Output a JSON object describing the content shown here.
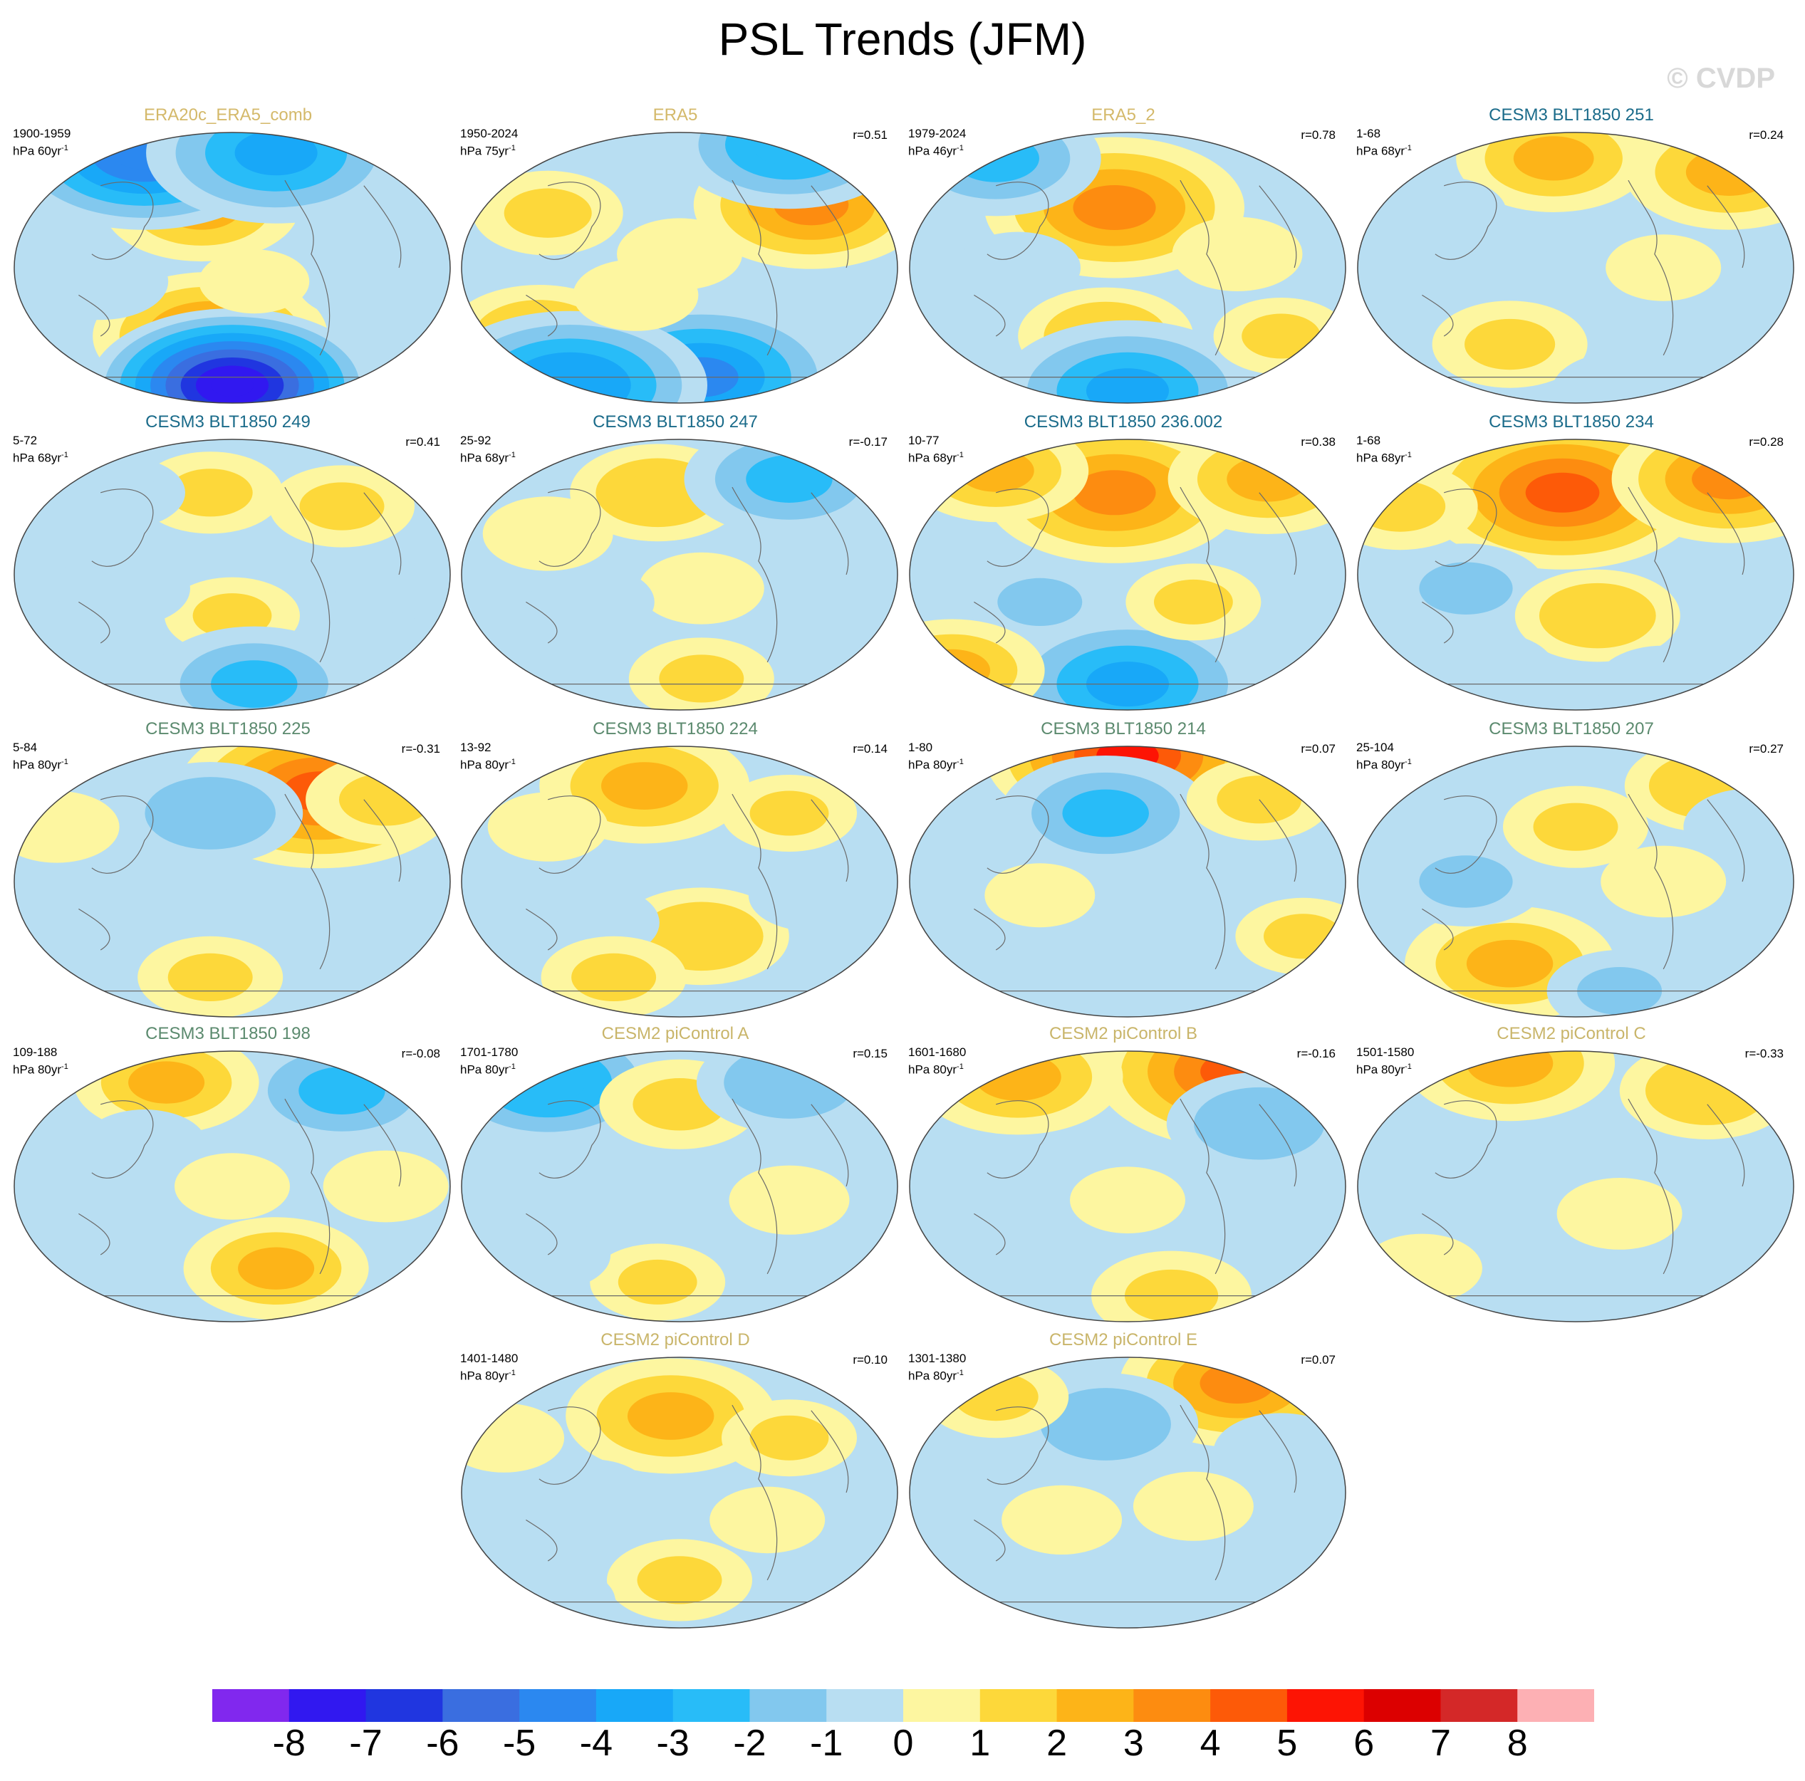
{
  "header": {
    "title": "PSL Trends (JFM)",
    "watermark": "© CVDP"
  },
  "colors": {
    "model_title": "#1a6b8a",
    "obs_title": "#d4b96a",
    "control_title": "#c9b56a",
    "muted_title": "#5b8a6e"
  },
  "chart_data": {
    "type": "heatmap",
    "title": "PSL Trends (JFM)",
    "projection": "Robinson (global)",
    "variable": "PSL",
    "season": "JFM",
    "colorbar": {
      "ticks": [
        "-8",
        "-7",
        "-6",
        "-5",
        "-4",
        "-3",
        "-2",
        "-1",
        "0",
        "1",
        "2",
        "3",
        "4",
        "5",
        "6",
        "7",
        "8"
      ],
      "colors": [
        "#8128ee",
        "#3118f0",
        "#2036e0",
        "#3a6ee0",
        "#2b88f0",
        "#18a8f8",
        "#28bcf8",
        "#82c8ee",
        "#b8def2",
        "#fdf6a0",
        "#fdd83a",
        "#fdb418",
        "#fd8c10",
        "#fd5a08",
        "#fd1404",
        "#dc0000",
        "#d42828",
        "#fdb0b4"
      ],
      "range": [
        -8,
        8
      ]
    },
    "panels": [
      {
        "name": "ERA20c_ERA5_comb",
        "period": "1900-1959",
        "units_base": "hPa 60yr",
        "units_exp": "-1",
        "r": "",
        "title_color": "obs",
        "features": [
          [
            0.43,
            0.28,
            2.2
          ],
          [
            0.72,
            0.08,
            1.4
          ],
          [
            0.45,
            0.75,
            3.0
          ],
          [
            0.5,
            0.93,
            -8.0
          ],
          [
            0.3,
            0.08,
            -5.0
          ],
          [
            0.6,
            0.08,
            -3.5
          ],
          [
            0.2,
            0.55,
            -1.0
          ],
          [
            0.8,
            0.55,
            -1.0
          ],
          [
            0.55,
            0.55,
            0.5
          ]
        ]
      },
      {
        "name": "ERA5",
        "period": "1950-2024",
        "units_base": "hPa 75yr",
        "units_exp": "-1",
        "r": "r=0.51",
        "title_color": "obs",
        "features": [
          [
            0.8,
            0.27,
            3.0
          ],
          [
            0.2,
            0.3,
            1.3
          ],
          [
            0.18,
            0.75,
            2.0
          ],
          [
            0.55,
            0.9,
            -4.5
          ],
          [
            0.25,
            0.93,
            -3.8
          ],
          [
            0.75,
            0.05,
            -3.0
          ],
          [
            0.5,
            0.45,
            0.8
          ],
          [
            0.4,
            0.6,
            0.8
          ]
        ]
      },
      {
        "name": "ERA5_2",
        "period": "1979-2024",
        "units_base": "hPa 46yr",
        "units_exp": "-1",
        "r": "r=0.78",
        "title_color": "obs",
        "features": [
          [
            0.47,
            0.28,
            3.5
          ],
          [
            0.45,
            0.75,
            1.8
          ],
          [
            0.5,
            0.95,
            -3.5
          ],
          [
            0.2,
            0.1,
            -2.5
          ],
          [
            0.25,
            0.5,
            -0.8
          ],
          [
            0.75,
            0.45,
            0.9
          ],
          [
            0.85,
            0.75,
            1.0
          ]
        ]
      },
      {
        "name": "CESM3 BLT1850 251",
        "period": "1-68",
        "units_base": "hPa 68yr",
        "units_exp": "-1",
        "r": "r=0.24",
        "title_color": "model",
        "features": [
          [
            0.45,
            0.1,
            2.2
          ],
          [
            0.85,
            0.15,
            2.5
          ],
          [
            0.3,
            0.5,
            -0.9
          ],
          [
            0.35,
            0.78,
            1.4
          ],
          [
            0.7,
            0.5,
            0.6
          ],
          [
            0.2,
            0.3,
            -0.8
          ],
          [
            0.6,
            0.95,
            -1.0
          ]
        ]
      },
      {
        "name": "CESM3 BLT1850 249",
        "period": "5-72",
        "units_base": "hPa 68yr",
        "units_exp": "-1",
        "r": "r=0.41",
        "title_color": "model",
        "features": [
          [
            0.45,
            0.2,
            1.2
          ],
          [
            0.75,
            0.25,
            1.2
          ],
          [
            0.5,
            0.65,
            1.0
          ],
          [
            0.55,
            0.9,
            -2.5
          ],
          [
            0.25,
            0.55,
            -1.0
          ],
          [
            0.25,
            0.2,
            -0.8
          ],
          [
            0.8,
            0.6,
            -0.6
          ]
        ]
      },
      {
        "name": "CESM3 BLT1850 247",
        "period": "25-92",
        "units_base": "hPa 68yr",
        "units_exp": "-1",
        "r": "r=-0.17",
        "title_color": "model",
        "features": [
          [
            0.45,
            0.2,
            1.8
          ],
          [
            0.75,
            0.15,
            -2.5
          ],
          [
            0.55,
            0.55,
            0.8
          ],
          [
            0.3,
            0.6,
            -0.8
          ],
          [
            0.55,
            0.88,
            1.2
          ],
          [
            0.2,
            0.35,
            0.9
          ]
        ]
      },
      {
        "name": "CESM3 BLT1850 236.002",
        "period": "10-77",
        "units_base": "hPa 68yr",
        "units_exp": "-1",
        "r": "r=0.38",
        "title_color": "model",
        "features": [
          [
            0.47,
            0.2,
            3.5
          ],
          [
            0.82,
            0.15,
            2.3
          ],
          [
            0.2,
            0.12,
            2.0
          ],
          [
            0.5,
            0.9,
            -3.5
          ],
          [
            0.3,
            0.6,
            -1.2
          ],
          [
            0.65,
            0.6,
            1.0
          ],
          [
            0.1,
            0.85,
            2.0
          ]
        ]
      },
      {
        "name": "CESM3 BLT1850 234",
        "period": "1-68",
        "units_base": "hPa 68yr",
        "units_exp": "-1",
        "r": "r=0.28",
        "title_color": "model",
        "features": [
          [
            0.47,
            0.2,
            4.0
          ],
          [
            0.85,
            0.15,
            3.0
          ],
          [
            0.25,
            0.55,
            -1.5
          ],
          [
            0.55,
            0.65,
            1.6
          ],
          [
            0.3,
            0.85,
            -1.0
          ],
          [
            0.1,
            0.25,
            1.4
          ],
          [
            0.7,
            0.9,
            -1.0
          ]
        ]
      },
      {
        "name": "CESM3 BLT1850 225",
        "period": "5-84",
        "units_base": "hPa 80yr",
        "units_exp": "-1",
        "r": "r=-0.31",
        "title_color": "muted",
        "features": [
          [
            0.7,
            0.17,
            4.0
          ],
          [
            0.45,
            0.25,
            -2.0
          ],
          [
            0.85,
            0.2,
            1.5
          ],
          [
            0.45,
            0.85,
            1.2
          ],
          [
            0.2,
            0.45,
            -0.5
          ],
          [
            0.6,
            0.6,
            -0.7
          ],
          [
            0.1,
            0.3,
            0.8
          ]
        ]
      },
      {
        "name": "CESM3 BLT1850 224",
        "period": "13-92",
        "units_base": "hPa 80yr",
        "units_exp": "-1",
        "r": "r=0.14",
        "title_color": "muted",
        "features": [
          [
            0.42,
            0.15,
            2.5
          ],
          [
            0.55,
            0.7,
            1.8
          ],
          [
            0.3,
            0.65,
            -1.0
          ],
          [
            0.35,
            0.85,
            1.2
          ],
          [
            0.75,
            0.25,
            1.0
          ],
          [
            0.8,
            0.55,
            -0.8
          ],
          [
            0.2,
            0.3,
            0.7
          ]
        ]
      },
      {
        "name": "CESM3 BLT1850 214",
        "period": "1-80",
        "units_base": "hPa 80yr",
        "units_exp": "-1",
        "r": "r=0.07",
        "title_color": "muted",
        "features": [
          [
            0.5,
            0.04,
            5.0
          ],
          [
            0.45,
            0.25,
            -2.5
          ],
          [
            0.3,
            0.8,
            -1.0
          ],
          [
            0.8,
            0.2,
            1.2
          ],
          [
            0.3,
            0.55,
            0.5
          ],
          [
            0.7,
            0.7,
            -0.5
          ],
          [
            0.9,
            0.7,
            1.0
          ]
        ]
      },
      {
        "name": "CESM3 BLT1850 207",
        "period": "25-104",
        "units_base": "hPa 80yr",
        "units_exp": "-1",
        "r": "r=0.27",
        "title_color": "muted",
        "features": [
          [
            0.35,
            0.8,
            2.5
          ],
          [
            0.25,
            0.5,
            -1.5
          ],
          [
            0.5,
            0.3,
            1.2
          ],
          [
            0.8,
            0.15,
            1.6
          ],
          [
            0.6,
            0.9,
            -1.2
          ],
          [
            0.7,
            0.5,
            0.8
          ],
          [
            0.9,
            0.3,
            -1.0
          ]
        ]
      },
      {
        "name": "CESM3 BLT1850 198",
        "period": "109-188",
        "units_base": "hPa 80yr",
        "units_exp": "-1",
        "r": "r=-0.08",
        "title_color": "muted",
        "features": [
          [
            0.75,
            0.15,
            -2.5
          ],
          [
            0.35,
            0.12,
            2.0
          ],
          [
            0.6,
            0.8,
            2.0
          ],
          [
            0.3,
            0.35,
            -0.8
          ],
          [
            0.5,
            0.5,
            0.6
          ],
          [
            0.2,
            0.7,
            -0.8
          ],
          [
            0.85,
            0.5,
            0.8
          ]
        ]
      },
      {
        "name": "CESM2 piControl A",
        "period": "1701-1780",
        "units_base": "hPa 80yr",
        "units_exp": "-1",
        "r": "r=0.15",
        "title_color": "control",
        "features": [
          [
            0.2,
            0.12,
            -3.0
          ],
          [
            0.5,
            0.2,
            1.5
          ],
          [
            0.75,
            0.12,
            -2.0
          ],
          [
            0.45,
            0.85,
            1.0
          ],
          [
            0.3,
            0.5,
            -0.6
          ],
          [
            0.75,
            0.55,
            0.7
          ],
          [
            0.2,
            0.75,
            -0.8
          ]
        ]
      },
      {
        "name": "CESM2 piControl B",
        "period": "1601-1680",
        "units_base": "hPa 80yr",
        "units_exp": "-1",
        "r": "r=-0.16",
        "title_color": "control",
        "features": [
          [
            0.75,
            0.08,
            4.0
          ],
          [
            0.25,
            0.1,
            2.5
          ],
          [
            0.8,
            0.27,
            -2.0
          ],
          [
            0.3,
            0.5,
            -0.8
          ],
          [
            0.6,
            0.9,
            1.5
          ],
          [
            0.5,
            0.55,
            0.6
          ],
          [
            0.15,
            0.7,
            -0.7
          ]
        ]
      },
      {
        "name": "CESM2 piControl C",
        "period": "1501-1580",
        "units_base": "hPa 80yr",
        "units_exp": "-1",
        "r": "r=-0.33",
        "title_color": "control",
        "features": [
          [
            0.35,
            0.05,
            2.5
          ],
          [
            0.8,
            0.15,
            1.8
          ],
          [
            0.3,
            0.45,
            -0.8
          ],
          [
            0.6,
            0.6,
            0.8
          ],
          [
            0.45,
            0.85,
            -0.9
          ],
          [
            0.9,
            0.55,
            -0.6
          ],
          [
            0.15,
            0.8,
            0.7
          ]
        ]
      },
      {
        "name": "CESM2 piControl D",
        "period": "1401-1480",
        "units_base": "hPa 80yr",
        "units_exp": "-1",
        "r": "r=0.10",
        "title_color": "control",
        "features": [
          [
            0.48,
            0.22,
            2.5
          ],
          [
            0.5,
            0.82,
            1.2
          ],
          [
            0.75,
            0.3,
            1.0
          ],
          [
            0.3,
            0.5,
            -0.6
          ],
          [
            0.2,
            0.9,
            -1.0
          ],
          [
            0.7,
            0.6,
            0.6
          ],
          [
            0.1,
            0.3,
            0.7
          ]
        ]
      },
      {
        "name": "CESM2 piControl E",
        "period": "1301-1380",
        "units_base": "hPa 80yr",
        "units_exp": "-1",
        "r": "r=0.07",
        "title_color": "control",
        "features": [
          [
            0.75,
            0.1,
            3.0
          ],
          [
            0.45,
            0.25,
            -2.0
          ],
          [
            0.2,
            0.15,
            1.2
          ],
          [
            0.85,
            0.35,
            -1.0
          ],
          [
            0.55,
            0.85,
            -1.0
          ],
          [
            0.35,
            0.6,
            0.7
          ],
          [
            0.65,
            0.55,
            0.7
          ]
        ]
      }
    ]
  }
}
